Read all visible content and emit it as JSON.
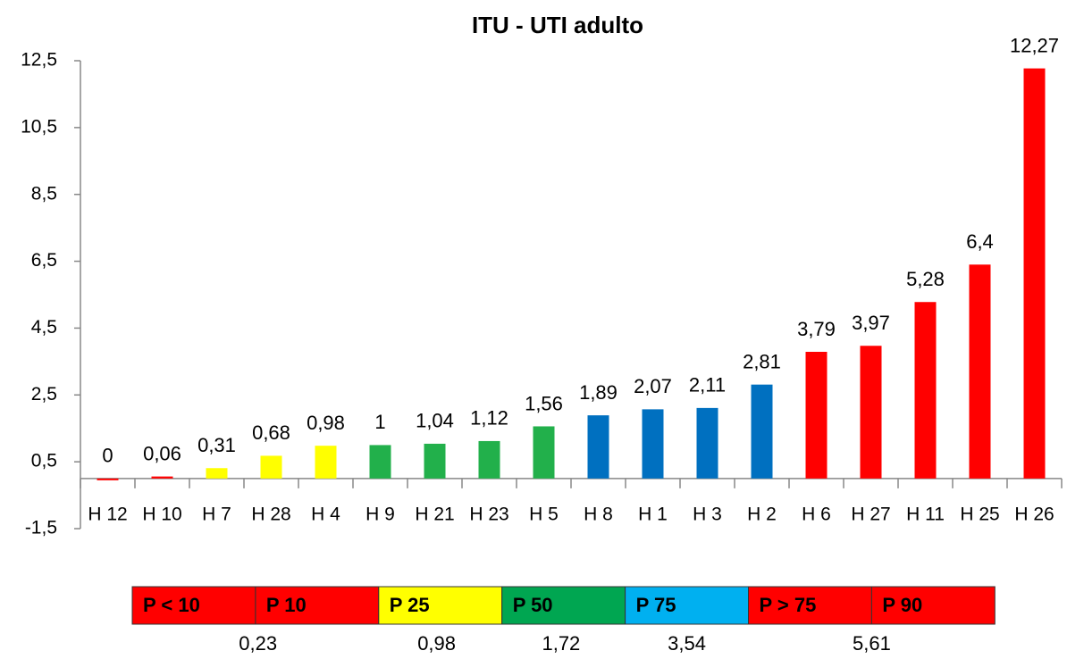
{
  "chart_data": {
    "type": "bar",
    "title": "ITU - UTI adulto",
    "categories": [
      "H 12",
      "H 10",
      "H 7",
      "H 28",
      "H 4",
      "H 9",
      "H 21",
      "H 23",
      "H 5",
      "H 8",
      "H 1",
      "H 3",
      "H 2",
      "H 6",
      "H 27",
      "H 11",
      "H 25",
      "H 26"
    ],
    "values": [
      0,
      0.06,
      0.31,
      0.68,
      0.98,
      1,
      1.04,
      1.12,
      1.56,
      1.89,
      2.07,
      2.11,
      2.81,
      3.79,
      3.97,
      5.28,
      6.4,
      12.27
    ],
    "value_labels": [
      "0",
      "0,06",
      "0,31",
      "0,68",
      "0,98",
      "1",
      "1,04",
      "1,12",
      "1,56",
      "1,89",
      "2,07",
      "2,11",
      "2,81",
      "3,79",
      "3,97",
      "5,28",
      "6,4",
      "12,27"
    ],
    "colors": [
      "#ff0000",
      "#ff0000",
      "#ffff00",
      "#ffff00",
      "#ffff00",
      "#22b04b",
      "#22b04b",
      "#22b04b",
      "#22b04b",
      "#0070c0",
      "#0070c0",
      "#0070c0",
      "#0070c0",
      "#ff0000",
      "#ff0000",
      "#ff0000",
      "#ff0000",
      "#ff0000"
    ],
    "ylim": [
      -1.5,
      12.5
    ],
    "yticks": [
      {
        "value": -1.5,
        "label": "-1,5"
      },
      {
        "value": 0.5,
        "label": "0,5"
      },
      {
        "value": 2.5,
        "label": "2,5"
      },
      {
        "value": 4.5,
        "label": "4,5"
      },
      {
        "value": 6.5,
        "label": "6,5"
      },
      {
        "value": 8.5,
        "label": "8,5"
      },
      {
        "value": 10.5,
        "label": "10,5"
      },
      {
        "value": 12.5,
        "label": "12,5"
      }
    ],
    "grid": false,
    "percentile_bands": [
      {
        "label": "P < 10",
        "color": "#ff0000"
      },
      {
        "label": "P 10",
        "color": "#ff0000",
        "value": 0.23,
        "value_label": "0,23"
      },
      {
        "label": "P 25",
        "color": "#ffff00",
        "value": 0.98,
        "value_label": "0,98"
      },
      {
        "label": "P 50",
        "color": "#00a651",
        "value": 1.72,
        "value_label": "1,72"
      },
      {
        "label": "P 75",
        "color": "#00b0f0",
        "value": 3.54,
        "value_label": "3,54"
      },
      {
        "label": "P > 75",
        "color": "#ff0000"
      },
      {
        "label": "P 90",
        "color": "#ff0000",
        "value": 5.61,
        "value_label": "5,61"
      }
    ]
  }
}
